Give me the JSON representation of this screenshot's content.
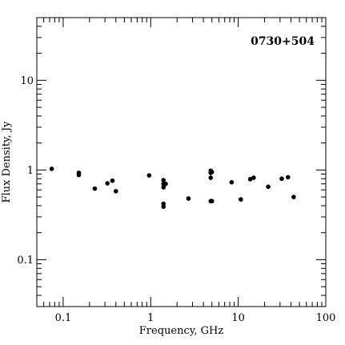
{
  "chart_data": {
    "type": "scatter",
    "title": "",
    "annotation": "0730+504",
    "xlabel": "Frequency, GHz",
    "ylabel": "Flux Density, Jy",
    "xscale": "log",
    "yscale": "log",
    "xlim": [
      0.05,
      100
    ],
    "ylim": [
      0.03,
      50
    ],
    "grid": false,
    "x_tick_labels": [
      {
        "value": 0.1,
        "label": "0.1"
      },
      {
        "value": 1,
        "label": "1"
      },
      {
        "value": 10,
        "label": "10"
      },
      {
        "value": 100,
        "label": "100"
      }
    ],
    "y_tick_labels": [
      {
        "value": 0.1,
        "label": "0.1"
      },
      {
        "value": 1,
        "label": "1"
      },
      {
        "value": 10,
        "label": "10"
      }
    ],
    "points": [
      {
        "x": 0.074,
        "y": 1.03
      },
      {
        "x": 0.151,
        "y": 0.93
      },
      {
        "x": 0.151,
        "y": 0.88
      },
      {
        "x": 0.23,
        "y": 0.62
      },
      {
        "x": 0.32,
        "y": 0.71
      },
      {
        "x": 0.365,
        "y": 0.76,
        "err": 0.04
      },
      {
        "x": 0.4,
        "y": 0.58
      },
      {
        "x": 0.96,
        "y": 0.87
      },
      {
        "x": 1.4,
        "y": 0.77
      },
      {
        "x": 1.4,
        "y": 0.7
      },
      {
        "x": 1.4,
        "y": 0.64
      },
      {
        "x": 1.4,
        "y": 0.42
      },
      {
        "x": 1.4,
        "y": 0.39
      },
      {
        "x": 1.48,
        "y": 0.7
      },
      {
        "x": 2.7,
        "y": 0.48
      },
      {
        "x": 4.85,
        "y": 0.98
      },
      {
        "x": 4.85,
        "y": 0.93
      },
      {
        "x": 4.85,
        "y": 0.82,
        "err": 0.05
      },
      {
        "x": 4.85,
        "y": 0.45
      },
      {
        "x": 5.0,
        "y": 0.95
      },
      {
        "x": 5.0,
        "y": 0.45
      },
      {
        "x": 8.4,
        "y": 0.73
      },
      {
        "x": 10.7,
        "y": 0.47
      },
      {
        "x": 13.7,
        "y": 0.79
      },
      {
        "x": 15.0,
        "y": 0.82
      },
      {
        "x": 22.0,
        "y": 0.65
      },
      {
        "x": 31.4,
        "y": 0.8
      },
      {
        "x": 37.0,
        "y": 0.83
      },
      {
        "x": 43.0,
        "y": 0.5
      }
    ]
  }
}
